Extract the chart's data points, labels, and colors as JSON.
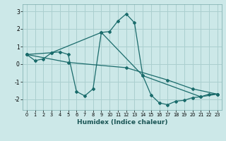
{
  "xlabel": "Humidex (Indice chaleur)",
  "bg_color": "#cce8e8",
  "grid_color": "#aacfcf",
  "line_color": "#1a6b6b",
  "xlim": [
    -0.5,
    23.5
  ],
  "ylim": [
    -2.6,
    3.4
  ],
  "yticks": [
    -2,
    -1,
    0,
    1,
    2,
    3
  ],
  "xticks": [
    0,
    1,
    2,
    3,
    4,
    5,
    6,
    7,
    8,
    9,
    10,
    11,
    12,
    13,
    14,
    15,
    16,
    17,
    18,
    19,
    20,
    21,
    22,
    23
  ],
  "line1_x": [
    0,
    1,
    2,
    3,
    4,
    5,
    6,
    7,
    8,
    9,
    10,
    11,
    12,
    13,
    14,
    15,
    16,
    17,
    18,
    19,
    20,
    21,
    22,
    23
  ],
  "line1_y": [
    0.55,
    0.2,
    0.3,
    0.65,
    0.7,
    0.55,
    -1.55,
    -1.8,
    -1.4,
    1.8,
    1.85,
    2.45,
    2.85,
    2.35,
    -0.65,
    -1.75,
    -2.2,
    -2.3,
    -2.1,
    -2.05,
    -1.9,
    -1.85,
    -1.7,
    -1.7
  ],
  "line2_x": [
    0,
    3,
    9,
    14,
    21,
    23
  ],
  "line2_y": [
    0.55,
    0.65,
    1.8,
    -0.65,
    -1.85,
    -1.7
  ],
  "line3_x": [
    0,
    5,
    12,
    17,
    20,
    23
  ],
  "line3_y": [
    0.55,
    0.1,
    -0.2,
    -0.9,
    -1.4,
    -1.7
  ]
}
